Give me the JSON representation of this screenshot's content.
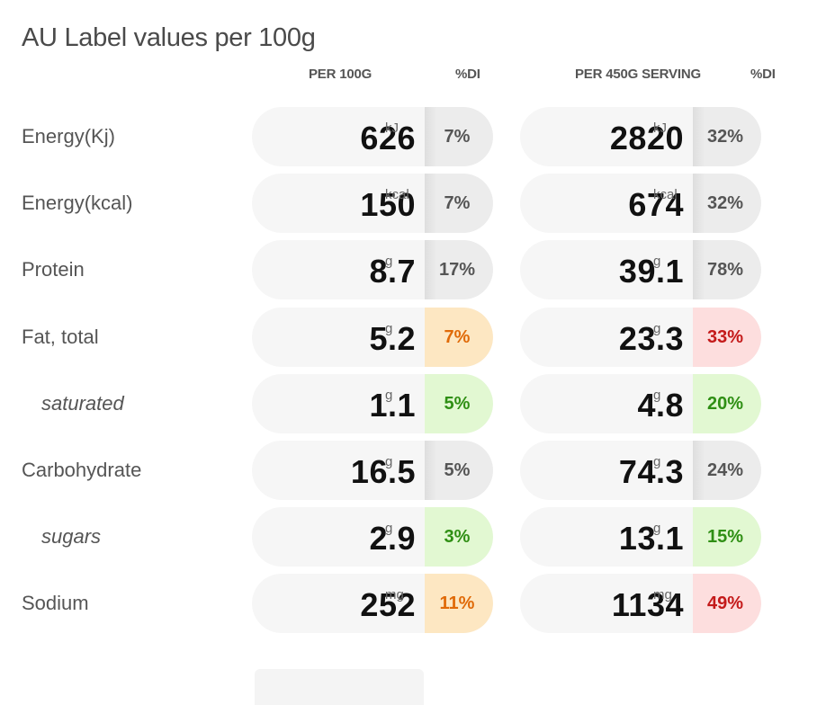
{
  "title": "AU Label values per 100g",
  "headers": {
    "per100": "PER 100G",
    "di1": "%DI",
    "perServing": "PER 450G SERVING",
    "di2": "%DI"
  },
  "rows": [
    {
      "label": "Energy(Kj)",
      "sub": false,
      "v1": "626",
      "u1": "kJ",
      "d1": "7%",
      "c1": "grey",
      "v2": "2820",
      "u2": "kJ",
      "d2": "32%",
      "c2": "grey"
    },
    {
      "label": "Energy(kcal)",
      "sub": false,
      "v1": "150",
      "u1": "kcal",
      "d1": "7%",
      "c1": "grey",
      "v2": "674",
      "u2": "kcal",
      "d2": "32%",
      "c2": "grey"
    },
    {
      "label": "Protein",
      "sub": false,
      "v1": "8.7",
      "u1": "g",
      "d1": "17%",
      "c1": "grey",
      "v2": "39.1",
      "u2": "g",
      "d2": "78%",
      "c2": "grey"
    },
    {
      "label": "Fat, total",
      "sub": false,
      "v1": "5.2",
      "u1": "g",
      "d1": "7%",
      "c1": "orange",
      "v2": "23.3",
      "u2": "g",
      "d2": "33%",
      "c2": "red"
    },
    {
      "label": "saturated",
      "sub": true,
      "v1": "1.1",
      "u1": "g",
      "d1": "5%",
      "c1": "green",
      "v2": "4.8",
      "u2": "g",
      "d2": "20%",
      "c2": "green"
    },
    {
      "label": "Carbohydrate",
      "sub": false,
      "v1": "16.5",
      "u1": "g",
      "d1": "5%",
      "c1": "grey",
      "v2": "74.3",
      "u2": "g",
      "d2": "24%",
      "c2": "grey"
    },
    {
      "label": "sugars",
      "sub": true,
      "v1": "2.9",
      "u1": "g",
      "d1": "3%",
      "c1": "green",
      "v2": "13.1",
      "u2": "g",
      "d2": "15%",
      "c2": "green"
    },
    {
      "label": "Sodium",
      "sub": false,
      "v1": "252",
      "u1": "mg",
      "d1": "11%",
      "c1": "orange",
      "v2": "1134",
      "u2": "mg",
      "d2": "49%",
      "c2": "red"
    }
  ]
}
